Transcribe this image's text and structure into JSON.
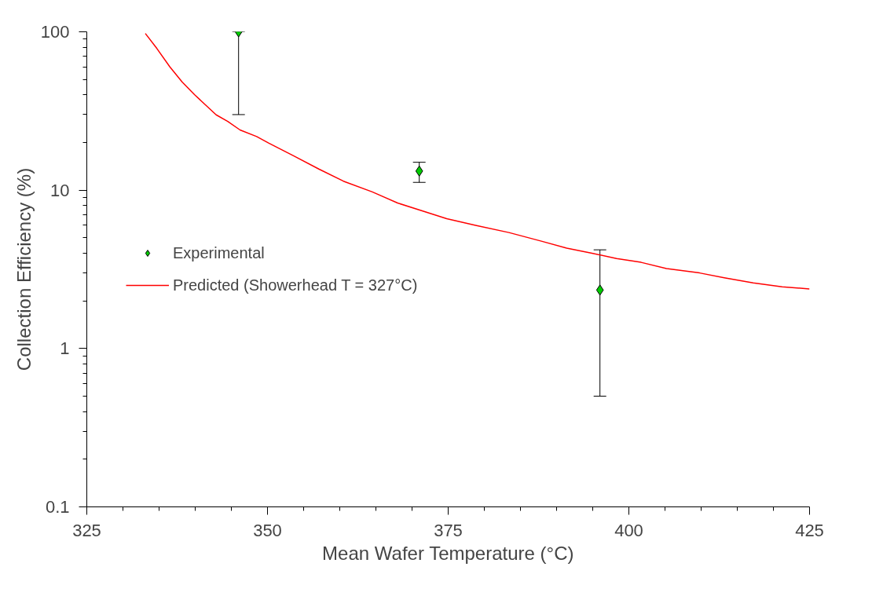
{
  "chart_data": {
    "type": "scatter",
    "xlabel": "Mean Wafer Temperature (°C)",
    "ylabel": "Collection Efficiency (%)",
    "xlim": [
      325,
      425
    ],
    "xticks": [
      325,
      350,
      375,
      400,
      425
    ],
    "ylim": [
      0.1,
      100
    ],
    "yticks": [
      0.1,
      1,
      10,
      100
    ],
    "log": "y",
    "grid": false,
    "legend": "center left",
    "series": [
      {
        "name": "Experimental",
        "marker": "diamond",
        "color": "#00cc00",
        "x": [
          346,
          371,
          396
        ],
        "values": [
          100,
          13.2,
          2.34
        ],
        "errors": [
          [
            30,
            100
          ],
          [
            11.2,
            15
          ],
          [
            0.5,
            4.2
          ]
        ]
      },
      {
        "name": "Predicted (Showerhead T = 327°C)",
        "type": "line",
        "marker": "none",
        "line_style": "solid",
        "color": "#ff0000",
        "x": [
          333.1,
          334.7,
          336.5,
          338.2,
          339.9,
          341,
          342.9,
          344.5,
          346.2,
          348.5,
          350.2,
          353.6,
          357.1,
          360.5,
          364.5,
          368,
          371.4,
          374.8,
          378.8,
          383.4,
          388,
          391.4,
          394.9,
          398.3,
          401.7,
          405.2,
          409.8,
          413.2,
          417.2,
          421.2,
          425
        ],
        "values": [
          97.6,
          78.4,
          60,
          48.2,
          40.1,
          36,
          29.9,
          27.2,
          24,
          21.8,
          19.8,
          16.5,
          13.6,
          11.4,
          9.75,
          8.3,
          7.4,
          6.6,
          6.0,
          5.4,
          4.75,
          4.3,
          4.0,
          3.7,
          3.5,
          3.2,
          3.0,
          2.8,
          2.6,
          2.45,
          2.38
        ]
      }
    ]
  }
}
